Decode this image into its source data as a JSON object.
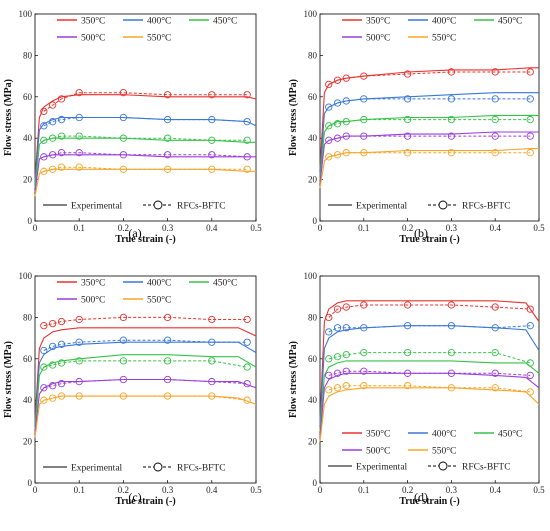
{
  "figure": {
    "legend_temps": [
      "350°C",
      "400°C",
      "450°C",
      "500°C",
      "550°C"
    ],
    "legend_colors": [
      "#e8322e",
      "#3a78d8",
      "#36c248",
      "#9a3fd8",
      "#f7a529"
    ],
    "experimental_label": "Experimental",
    "model_label": "RFCs-BFTC",
    "xlabel": "True strain (-)",
    "ylabel": "Flow stress (MPa)"
  },
  "chart_data": [
    {
      "type": "line",
      "panel_label": "(a)",
      "xlim": [
        0,
        0.5
      ],
      "ylim": [
        0,
        100
      ],
      "xticks": [
        "0",
        "0.1",
        "0.2",
        "0.3",
        "0.4",
        "0.5"
      ],
      "yticks": [
        "0",
        "20",
        "40",
        "60",
        "80",
        "100"
      ],
      "legend_position": "top",
      "series": [
        {
          "name": "350°C",
          "color": "#e8322e",
          "x": [
            0.0,
            0.01,
            0.02,
            0.04,
            0.06,
            0.1,
            0.2,
            0.3,
            0.4,
            0.48,
            0.5
          ],
          "y": [
            20,
            50,
            55,
            58,
            60,
            61,
            61,
            60,
            60,
            60,
            59
          ],
          "model_x": [
            0.02,
            0.04,
            0.06,
            0.1,
            0.2,
            0.3,
            0.4,
            0.48
          ],
          "model_y": [
            53,
            56,
            59,
            62,
            62,
            61,
            61,
            61
          ]
        },
        {
          "name": "400°C",
          "color": "#3a78d8",
          "x": [
            0.0,
            0.01,
            0.02,
            0.04,
            0.06,
            0.1,
            0.2,
            0.3,
            0.4,
            0.48,
            0.5
          ],
          "y": [
            18,
            44,
            47,
            49,
            50,
            50,
            50,
            49,
            49,
            48,
            46
          ],
          "model_x": [
            0.02,
            0.04,
            0.06,
            0.1,
            0.2,
            0.3,
            0.4,
            0.48
          ],
          "model_y": [
            46,
            48,
            49,
            50,
            50,
            49,
            49,
            48
          ]
        },
        {
          "name": "450°C",
          "color": "#36c248",
          "x": [
            0.0,
            0.01,
            0.02,
            0.04,
            0.06,
            0.1,
            0.2,
            0.3,
            0.4,
            0.48,
            0.5
          ],
          "y": [
            16,
            37,
            39,
            40,
            40,
            40,
            40,
            39,
            39,
            38,
            38
          ],
          "model_x": [
            0.02,
            0.04,
            0.06,
            0.1,
            0.2,
            0.3,
            0.4,
            0.48
          ],
          "model_y": [
            39,
            40,
            41,
            41,
            40,
            40,
            39,
            39
          ]
        },
        {
          "name": "500°C",
          "color": "#9a3fd8",
          "x": [
            0.0,
            0.01,
            0.02,
            0.04,
            0.06,
            0.1,
            0.2,
            0.3,
            0.4,
            0.48,
            0.5
          ],
          "y": [
            14,
            30,
            31,
            32,
            32,
            32,
            32,
            31,
            31,
            31,
            31
          ],
          "model_x": [
            0.02,
            0.04,
            0.06,
            0.1,
            0.2,
            0.3,
            0.4,
            0.48
          ],
          "model_y": [
            31,
            32,
            33,
            33,
            32,
            32,
            32,
            31
          ]
        },
        {
          "name": "550°C",
          "color": "#f7a529",
          "x": [
            0.0,
            0.01,
            0.02,
            0.04,
            0.06,
            0.1,
            0.2,
            0.3,
            0.4,
            0.48,
            0.5
          ],
          "y": [
            12,
            23,
            24,
            25,
            25,
            25,
            25,
            25,
            25,
            24,
            24
          ],
          "model_x": [
            0.02,
            0.04,
            0.06,
            0.1,
            0.2,
            0.3,
            0.4,
            0.48
          ],
          "model_y": [
            24,
            25,
            26,
            26,
            25,
            25,
            25,
            25
          ]
        }
      ]
    },
    {
      "type": "line",
      "panel_label": "(b)",
      "xlim": [
        0,
        0.5
      ],
      "ylim": [
        0,
        100
      ],
      "xticks": [
        "0",
        "0.1",
        "0.2",
        "0.3",
        "0.4",
        "0.5"
      ],
      "yticks": [
        "0",
        "20",
        "40",
        "60",
        "80",
        "100"
      ],
      "legend_position": "top",
      "series": [
        {
          "name": "350°C",
          "color": "#e8322e",
          "x": [
            0.0,
            0.01,
            0.02,
            0.04,
            0.06,
            0.1,
            0.2,
            0.3,
            0.4,
            0.48,
            0.5
          ],
          "y": [
            25,
            62,
            66,
            68,
            69,
            70,
            72,
            73,
            73,
            74,
            74
          ],
          "model_x": [
            0.02,
            0.04,
            0.06,
            0.1,
            0.2,
            0.3,
            0.4,
            0.48
          ],
          "model_y": [
            66,
            68,
            69,
            70,
            71,
            72,
            72,
            72
          ]
        },
        {
          "name": "400°C",
          "color": "#3a78d8",
          "x": [
            0.0,
            0.01,
            0.02,
            0.04,
            0.06,
            0.1,
            0.2,
            0.3,
            0.4,
            0.48,
            0.5
          ],
          "y": [
            22,
            52,
            55,
            57,
            58,
            59,
            60,
            61,
            62,
            62,
            62
          ],
          "model_x": [
            0.02,
            0.04,
            0.06,
            0.1,
            0.2,
            0.3,
            0.4,
            0.48
          ],
          "model_y": [
            55,
            57,
            58,
            59,
            59,
            59,
            59,
            59
          ]
        },
        {
          "name": "450°C",
          "color": "#36c248",
          "x": [
            0.0,
            0.01,
            0.02,
            0.04,
            0.06,
            0.1,
            0.2,
            0.3,
            0.4,
            0.48,
            0.5
          ],
          "y": [
            20,
            43,
            46,
            48,
            48,
            49,
            50,
            50,
            51,
            51,
            51
          ],
          "model_x": [
            0.02,
            0.04,
            0.06,
            0.1,
            0.2,
            0.3,
            0.4,
            0.48
          ],
          "model_y": [
            46,
            47,
            48,
            49,
            49,
            49,
            49,
            49
          ]
        },
        {
          "name": "500°C",
          "color": "#9a3fd8",
          "x": [
            0.0,
            0.01,
            0.02,
            0.04,
            0.06,
            0.1,
            0.2,
            0.3,
            0.4,
            0.48,
            0.5
          ],
          "y": [
            18,
            37,
            39,
            40,
            41,
            41,
            42,
            42,
            43,
            43,
            43
          ],
          "model_x": [
            0.02,
            0.04,
            0.06,
            0.1,
            0.2,
            0.3,
            0.4,
            0.48
          ],
          "model_y": [
            39,
            40,
            41,
            41,
            41,
            41,
            41,
            41
          ]
        },
        {
          "name": "550°C",
          "color": "#f7a529",
          "x": [
            0.0,
            0.01,
            0.02,
            0.04,
            0.06,
            0.1,
            0.2,
            0.3,
            0.4,
            0.48,
            0.5
          ],
          "y": [
            16,
            29,
            31,
            32,
            33,
            33,
            34,
            34,
            34,
            35,
            35
          ],
          "model_x": [
            0.02,
            0.04,
            0.06,
            0.1,
            0.2,
            0.3,
            0.4,
            0.48
          ],
          "model_y": [
            31,
            32,
            33,
            33,
            33,
            33,
            33,
            33
          ]
        }
      ]
    },
    {
      "type": "line",
      "panel_label": "(c)",
      "xlim": [
        0,
        0.5
      ],
      "ylim": [
        0,
        100
      ],
      "xticks": [
        "0",
        "0.1",
        "0.2",
        "0.3",
        "0.4",
        "0.5"
      ],
      "yticks": [
        "0",
        "20",
        "40",
        "60",
        "80",
        "100"
      ],
      "legend_position": "top",
      "series": [
        {
          "name": "350°C",
          "color": "#e8322e",
          "x": [
            0.0,
            0.01,
            0.02,
            0.04,
            0.06,
            0.1,
            0.2,
            0.3,
            0.4,
            0.46,
            0.5
          ],
          "y": [
            30,
            65,
            70,
            73,
            74,
            75,
            75,
            75,
            75,
            75,
            71
          ],
          "model_x": [
            0.02,
            0.04,
            0.06,
            0.1,
            0.2,
            0.3,
            0.4,
            0.48
          ],
          "model_y": [
            76,
            77,
            78,
            79,
            80,
            80,
            79,
            79
          ]
        },
        {
          "name": "400°C",
          "color": "#3a78d8",
          "x": [
            0.0,
            0.01,
            0.02,
            0.04,
            0.06,
            0.1,
            0.2,
            0.3,
            0.4,
            0.46,
            0.5
          ],
          "y": [
            28,
            58,
            62,
            65,
            66,
            67,
            68,
            68,
            68,
            68,
            63
          ],
          "model_x": [
            0.02,
            0.04,
            0.06,
            0.1,
            0.2,
            0.3,
            0.4,
            0.48
          ],
          "model_y": [
            64,
            66,
            67,
            68,
            69,
            69,
            68,
            68
          ]
        },
        {
          "name": "450°C",
          "color": "#36c248",
          "x": [
            0.0,
            0.01,
            0.02,
            0.04,
            0.06,
            0.1,
            0.2,
            0.3,
            0.4,
            0.46,
            0.5
          ],
          "y": [
            26,
            52,
            56,
            58,
            59,
            60,
            62,
            62,
            61,
            61,
            56
          ],
          "model_x": [
            0.02,
            0.04,
            0.06,
            0.1,
            0.2,
            0.3,
            0.4,
            0.48
          ],
          "model_y": [
            56,
            57,
            58,
            59,
            59,
            59,
            59,
            56
          ]
        },
        {
          "name": "500°C",
          "color": "#9a3fd8",
          "x": [
            0.0,
            0.01,
            0.02,
            0.04,
            0.06,
            0.1,
            0.2,
            0.3,
            0.4,
            0.46,
            0.5
          ],
          "y": [
            24,
            43,
            46,
            48,
            49,
            49,
            50,
            50,
            49,
            49,
            46
          ],
          "model_x": [
            0.02,
            0.04,
            0.06,
            0.1,
            0.2,
            0.3,
            0.4,
            0.48
          ],
          "model_y": [
            46,
            47,
            48,
            49,
            50,
            50,
            49,
            48
          ]
        },
        {
          "name": "550°C",
          "color": "#f7a529",
          "x": [
            0.0,
            0.01,
            0.02,
            0.04,
            0.06,
            0.1,
            0.2,
            0.3,
            0.4,
            0.46,
            0.5
          ],
          "y": [
            22,
            38,
            40,
            41,
            42,
            42,
            42,
            42,
            42,
            41,
            38
          ],
          "model_x": [
            0.02,
            0.04,
            0.06,
            0.1,
            0.2,
            0.3,
            0.4,
            0.48
          ],
          "model_y": [
            40,
            41,
            42,
            42,
            42,
            42,
            42,
            40
          ]
        }
      ]
    },
    {
      "type": "line",
      "panel_label": "(d)",
      "xlim": [
        0,
        0.5
      ],
      "ylim": [
        0,
        100
      ],
      "xticks": [
        "0",
        "0.1",
        "0.2",
        "0.3",
        "0.4",
        "0.5"
      ],
      "yticks": [
        "0",
        "20",
        "40",
        "60",
        "80",
        "100"
      ],
      "legend_position": "bottom",
      "series": [
        {
          "name": "350°C",
          "color": "#e8322e",
          "x": [
            0.0,
            0.01,
            0.02,
            0.04,
            0.06,
            0.1,
            0.2,
            0.3,
            0.4,
            0.47,
            0.5
          ],
          "y": [
            30,
            78,
            84,
            87,
            88,
            88,
            88,
            88,
            88,
            87,
            78
          ],
          "model_x": [
            0.02,
            0.04,
            0.06,
            0.1,
            0.2,
            0.3,
            0.4,
            0.48
          ],
          "model_y": [
            80,
            84,
            85,
            86,
            86,
            86,
            85,
            84
          ]
        },
        {
          "name": "400°C",
          "color": "#3a78d8",
          "x": [
            0.0,
            0.01,
            0.02,
            0.04,
            0.06,
            0.1,
            0.2,
            0.3,
            0.4,
            0.47,
            0.5
          ],
          "y": [
            28,
            65,
            70,
            73,
            74,
            75,
            76,
            76,
            75,
            74,
            64
          ],
          "model_x": [
            0.02,
            0.04,
            0.06,
            0.1,
            0.2,
            0.3,
            0.4,
            0.48
          ],
          "model_y": [
            73,
            75,
            75,
            75,
            76,
            76,
            75,
            76
          ]
        },
        {
          "name": "450°C",
          "color": "#36c248",
          "x": [
            0.0,
            0.01,
            0.02,
            0.04,
            0.06,
            0.1,
            0.2,
            0.3,
            0.4,
            0.47,
            0.5
          ],
          "y": [
            25,
            52,
            56,
            58,
            59,
            59,
            59,
            59,
            58,
            58,
            53
          ],
          "model_x": [
            0.02,
            0.04,
            0.06,
            0.1,
            0.2,
            0.3,
            0.4,
            0.48
          ],
          "model_y": [
            60,
            61,
            62,
            63,
            63,
            63,
            63,
            58
          ]
        },
        {
          "name": "500°C",
          "color": "#9a3fd8",
          "x": [
            0.0,
            0.01,
            0.02,
            0.04,
            0.06,
            0.1,
            0.2,
            0.3,
            0.4,
            0.47,
            0.5
          ],
          "y": [
            22,
            46,
            50,
            52,
            53,
            53,
            53,
            53,
            52,
            51,
            46
          ],
          "model_x": [
            0.02,
            0.04,
            0.06,
            0.1,
            0.2,
            0.3,
            0.4,
            0.48
          ],
          "model_y": [
            52,
            53,
            54,
            54,
            53,
            53,
            53,
            52
          ]
        },
        {
          "name": "550°C",
          "color": "#f7a529",
          "x": [
            0.0,
            0.01,
            0.02,
            0.04,
            0.06,
            0.1,
            0.2,
            0.3,
            0.4,
            0.47,
            0.5
          ],
          "y": [
            20,
            38,
            42,
            44,
            45,
            46,
            46,
            46,
            45,
            44,
            38
          ],
          "model_x": [
            0.02,
            0.04,
            0.06,
            0.1,
            0.2,
            0.3,
            0.4,
            0.48
          ],
          "model_y": [
            45,
            46,
            47,
            47,
            47,
            46,
            46,
            44
          ]
        }
      ]
    }
  ]
}
